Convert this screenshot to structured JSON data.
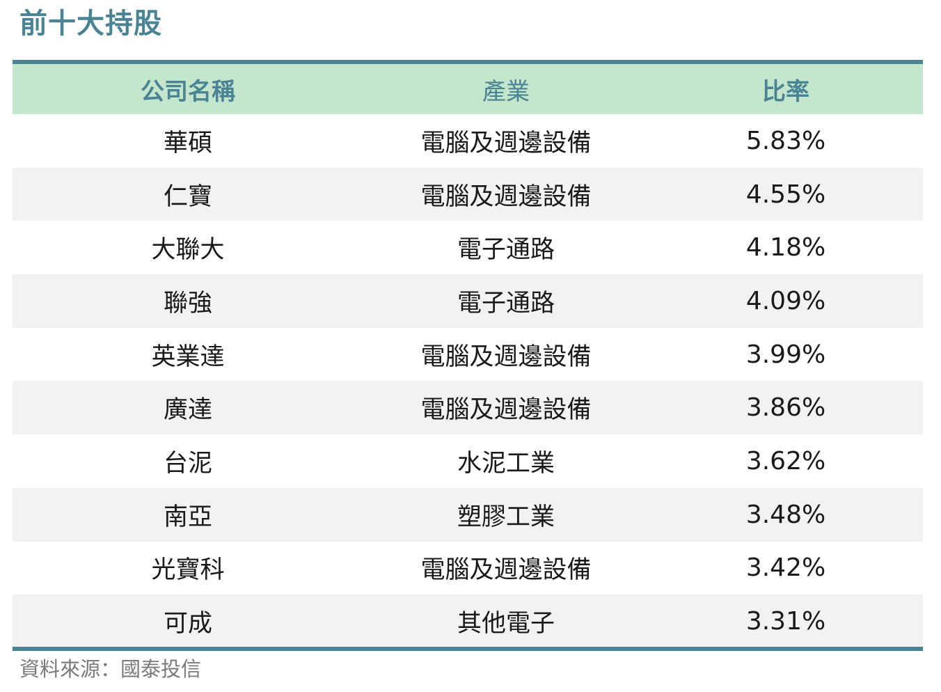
{
  "title": "前十大持股",
  "table": {
    "headers": {
      "company": "公司名稱",
      "industry": "產業",
      "ratio": "比率"
    },
    "rows": [
      {
        "company": "華碩",
        "industry": "電腦及週邊設備",
        "ratio": "5.83%"
      },
      {
        "company": "仁寶",
        "industry": "電腦及週邊設備",
        "ratio": "4.55%"
      },
      {
        "company": "大聯大",
        "industry": "電子通路",
        "ratio": "4.18%"
      },
      {
        "company": "聯強",
        "industry": "電子通路",
        "ratio": "4.09%"
      },
      {
        "company": "英業達",
        "industry": "電腦及週邊設備",
        "ratio": "3.99%"
      },
      {
        "company": "廣達",
        "industry": "電腦及週邊設備",
        "ratio": "3.86%"
      },
      {
        "company": "台泥",
        "industry": "水泥工業",
        "ratio": "3.62%"
      },
      {
        "company": "南亞",
        "industry": "塑膠工業",
        "ratio": "3.48%"
      },
      {
        "company": "光寶科",
        "industry": "電腦及週邊設備",
        "ratio": "3.42%"
      },
      {
        "company": "可成",
        "industry": "其他電子",
        "ratio": "3.31%"
      }
    ]
  },
  "source": "資料來源：國泰投信",
  "colors": {
    "accent": "#4a8494",
    "header_bg": "#c3e6cd",
    "stripe_bg": "#f2f2f2",
    "text": "#1a1a1a",
    "source_text": "#7a7a7a"
  }
}
